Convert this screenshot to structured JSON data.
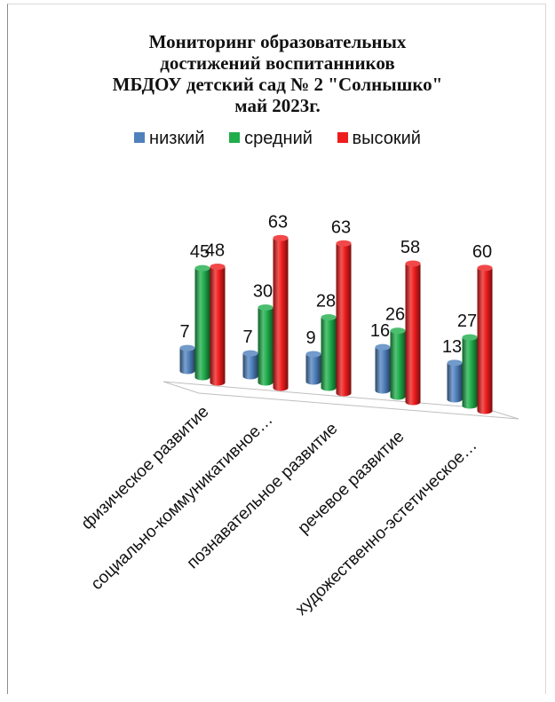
{
  "chart_data": {
    "type": "bar",
    "title_lines": [
      "Мониторинг образовательных",
      "достижений воспитанников",
      "МБДОУ детский сад № 2 \"Солнышко\"",
      "май  2023г."
    ],
    "categories": [
      "физическое развитие",
      "социально-коммуникативное…",
      "познавательное развитие",
      "речевое развитие",
      "художественно-эстетическое…"
    ],
    "series": [
      {
        "name": "низкий",
        "values": [
          7,
          7,
          9,
          16,
          13
        ]
      },
      {
        "name": "средний",
        "values": [
          45,
          30,
          28,
          26,
          27
        ]
      },
      {
        "name": "высокий",
        "values": [
          48,
          63,
          63,
          58,
          60
        ]
      }
    ],
    "ylim": [
      0,
      70
    ],
    "grid": false,
    "legend_position": "top",
    "colors": {
      "низкий": "#4f81bd",
      "средний": "#1fae4b",
      "высокий": "#ee1c1c"
    }
  }
}
